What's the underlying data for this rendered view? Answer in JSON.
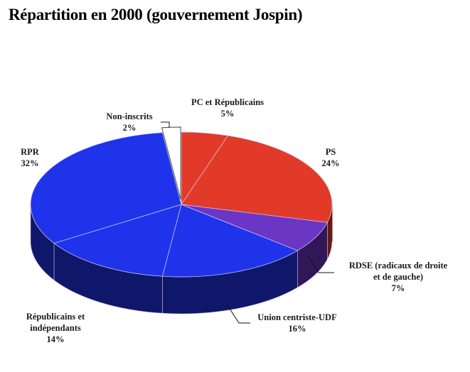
{
  "chart_data": {
    "type": "pie",
    "title": "Répartition en 2000 (gouvernement Jospin)",
    "style": "3d",
    "unit": "%",
    "slices": [
      {
        "name": "PC et Républicains",
        "value": 5,
        "label": "5%",
        "color": "#e23a28"
      },
      {
        "name": "PS",
        "value": 24,
        "label": "24%",
        "color": "#e23a28"
      },
      {
        "name": "RDSE (radicaux de droite et de gauche)",
        "value": 7,
        "label": "7%",
        "color": "#6b36c4"
      },
      {
        "name": "Union centriste-UDF",
        "value": 16,
        "label": "16%",
        "color": "#1f34ea"
      },
      {
        "name": "Républicains et indépendants",
        "value": 14,
        "label": "14%",
        "color": "#1f34ea"
      },
      {
        "name": "RPR",
        "value": 32,
        "label": "32%",
        "color": "#1f34ea"
      },
      {
        "name": "Non-inscrits",
        "value": 2,
        "label": "2%",
        "color": "#ffffff",
        "exploded": true
      }
    ]
  }
}
